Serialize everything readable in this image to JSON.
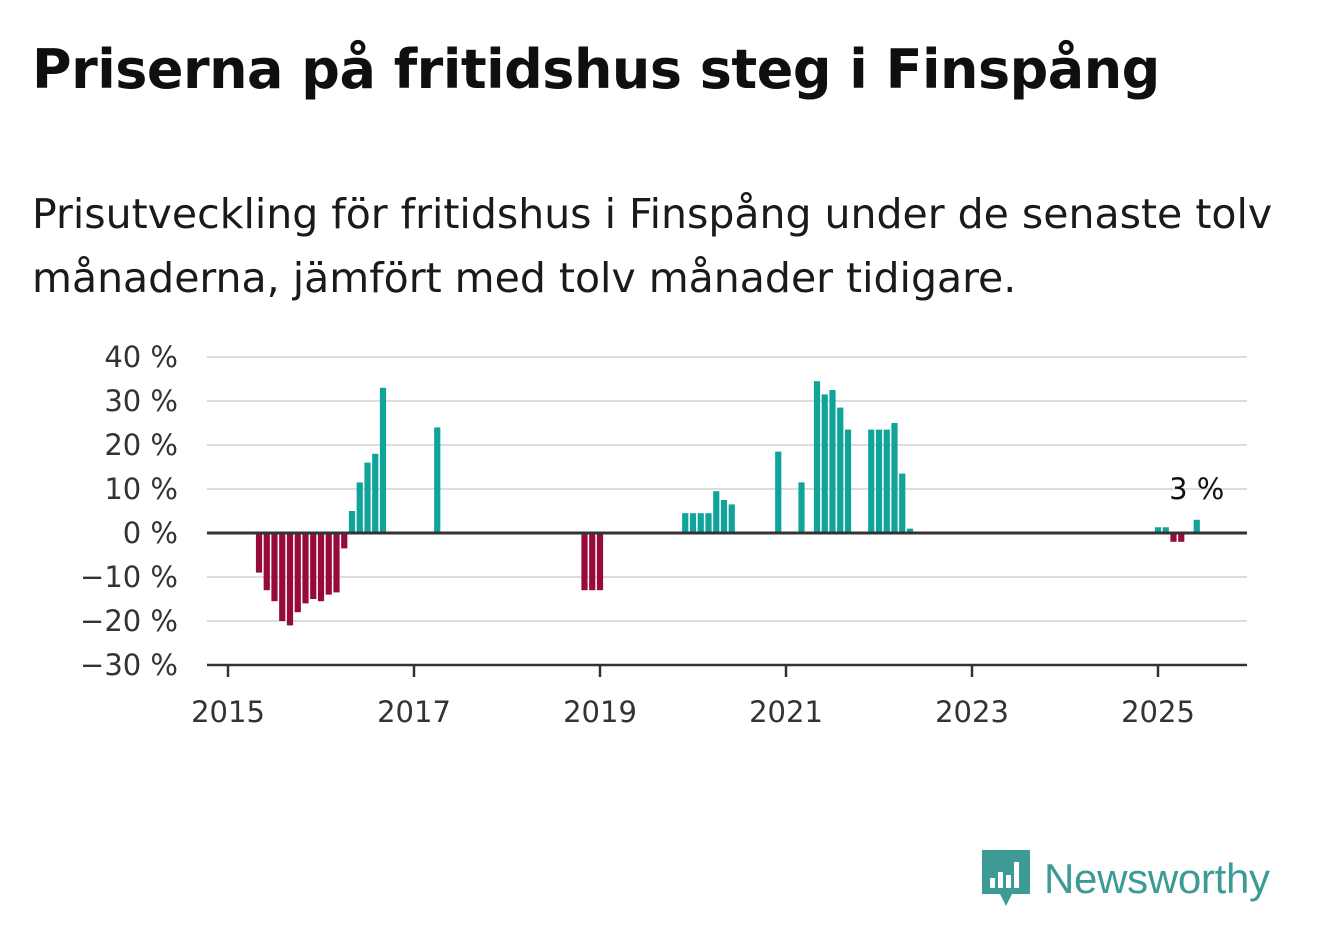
{
  "title": "Priserna på fritidshus steg i Finspång",
  "subtitle": "Prisutveckling för fritidshus i Finspång under de senaste tolv månaderna, jämfört med tolv månader tidigare.",
  "brand": {
    "name": "Newsworthy",
    "icon": "newsworthy-logo-icon"
  },
  "colors": {
    "positive": "#0fa39a",
    "negative": "#960a3c",
    "grid": "#dddddd",
    "axis": "#333333"
  },
  "chart_data": {
    "type": "bar",
    "x_unit": "month",
    "x_ticks": [
      "2015",
      "2017",
      "2019",
      "2021",
      "2023",
      "2025"
    ],
    "y_ticks": [
      "40 %",
      "30 %",
      "20 %",
      "10 %",
      "0 %",
      "−10 %",
      "−20 %",
      "−30 %"
    ],
    "ylim": [
      -30,
      40
    ],
    "xlim": [
      "2015-01",
      "2025-12"
    ],
    "grid": true,
    "annotations": [
      {
        "x": "2025-06",
        "y": 3,
        "text": "3 %"
      }
    ],
    "points": [
      {
        "x": "2015-05",
        "y": -9
      },
      {
        "x": "2015-06",
        "y": -13
      },
      {
        "x": "2015-07",
        "y": -15.5
      },
      {
        "x": "2015-08",
        "y": -20
      },
      {
        "x": "2015-09",
        "y": -21
      },
      {
        "x": "2015-10",
        "y": -18
      },
      {
        "x": "2015-11",
        "y": -16
      },
      {
        "x": "2015-12",
        "y": -15
      },
      {
        "x": "2016-01",
        "y": -15.5
      },
      {
        "x": "2016-02",
        "y": -14
      },
      {
        "x": "2016-03",
        "y": -13.5
      },
      {
        "x": "2016-04",
        "y": -3.5
      },
      {
        "x": "2016-05",
        "y": 5
      },
      {
        "x": "2016-06",
        "y": 11.5
      },
      {
        "x": "2016-07",
        "y": 16
      },
      {
        "x": "2016-08",
        "y": 18
      },
      {
        "x": "2016-09",
        "y": 33
      },
      {
        "x": "2017-04",
        "y": 24
      },
      {
        "x": "2018-11",
        "y": -13
      },
      {
        "x": "2018-12",
        "y": -13
      },
      {
        "x": "2019-01",
        "y": -13
      },
      {
        "x": "2019-12",
        "y": 4.5
      },
      {
        "x": "2020-01",
        "y": 4.5
      },
      {
        "x": "2020-02",
        "y": 4.5
      },
      {
        "x": "2020-03",
        "y": 4.5
      },
      {
        "x": "2020-04",
        "y": 9.5
      },
      {
        "x": "2020-05",
        "y": 7.5
      },
      {
        "x": "2020-06",
        "y": 6.5
      },
      {
        "x": "2020-12",
        "y": 18.5
      },
      {
        "x": "2021-03",
        "y": 11.5
      },
      {
        "x": "2021-05",
        "y": 34.5
      },
      {
        "x": "2021-06",
        "y": 31.5
      },
      {
        "x": "2021-07",
        "y": 32.5
      },
      {
        "x": "2021-08",
        "y": 28.5
      },
      {
        "x": "2021-09",
        "y": 23.5
      },
      {
        "x": "2021-12",
        "y": 23.5
      },
      {
        "x": "2022-01",
        "y": 23.5
      },
      {
        "x": "2022-02",
        "y": 23.5
      },
      {
        "x": "2022-03",
        "y": 25
      },
      {
        "x": "2022-04",
        "y": 13.5
      },
      {
        "x": "2022-05",
        "y": 1
      },
      {
        "x": "2025-01",
        "y": 1.3
      },
      {
        "x": "2025-02",
        "y": 1.3
      },
      {
        "x": "2025-03",
        "y": -2
      },
      {
        "x": "2025-04",
        "y": -2
      },
      {
        "x": "2025-06",
        "y": 3
      }
    ]
  }
}
